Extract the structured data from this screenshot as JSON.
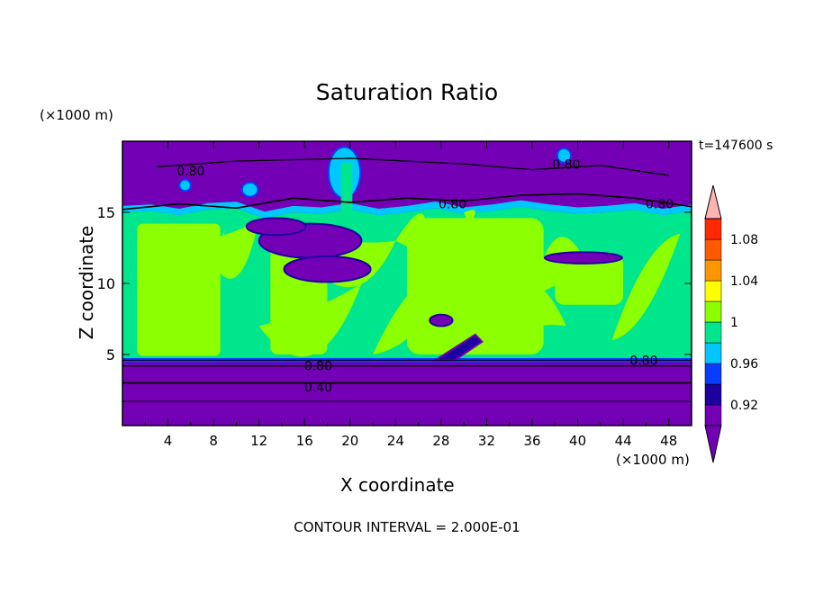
{
  "chart_data": {
    "type": "heatmap",
    "title": "Saturation Ratio",
    "xlabel": "X coordinate",
    "ylabel": "Z coordinate",
    "x_units": "(×1000 m)",
    "y_units": "(×1000 m)",
    "time_label": "t=147600 s",
    "footer": "CONTOUR INTERVAL = 2.000E-01",
    "xlim": [
      0,
      50
    ],
    "ylim": [
      0,
      20
    ],
    "x_ticks": [
      4,
      8,
      12,
      16,
      20,
      24,
      28,
      32,
      36,
      40,
      44,
      48
    ],
    "x_tick_labels": [
      "4",
      "8",
      "12",
      "16",
      "20",
      "24",
      "28",
      "32",
      "36",
      "40",
      "44",
      "48"
    ],
    "y_ticks": [
      5,
      10,
      15
    ],
    "y_tick_labels": [
      "5",
      "10",
      "15"
    ],
    "colorbar": {
      "levels": [
        0.9,
        0.92,
        0.94,
        0.96,
        0.98,
        1.0,
        1.02,
        1.04,
        1.06,
        1.08,
        1.1
      ],
      "labels": [
        "0.92",
        "0.96",
        "1",
        "1.04",
        "1.08"
      ],
      "label_values": [
        0.92,
        0.96,
        1.0,
        1.04,
        1.08
      ],
      "colors": [
        "#7300b4",
        "#1e00a0",
        "#0a3cff",
        "#00c8ff",
        "#00e68c",
        "#8cff00",
        "#ffff00",
        "#ff9600",
        "#ff5a00",
        "#ff2800",
        "#ffb4b4"
      ],
      "extend": "both"
    },
    "contour_labels": [
      {
        "text": "0.80",
        "x": 6.0,
        "z": 17.9
      },
      {
        "text": "0.80",
        "x": 29.0,
        "z": 15.6
      },
      {
        "text": "0.80",
        "x": 39.0,
        "z": 18.4
      },
      {
        "text": "0.80",
        "x": 47.2,
        "z": 15.6
      },
      {
        "text": "0.80",
        "x": 17.2,
        "z": 4.2
      },
      {
        "text": "0.40",
        "x": 17.2,
        "z": 2.7
      },
      {
        "text": "0.80",
        "x": 45.8,
        "z": 4.6
      }
    ],
    "regions": {
      "upper_dry_layer": {
        "z_range": [
          15,
          20
        ],
        "value": "<0.90"
      },
      "cloud_layer": {
        "z_range": [
          5,
          15
        ],
        "value": "0.98–1.02"
      },
      "lower_dry_layer": {
        "z_range": [
          0,
          4.5
        ],
        "value": "<0.90"
      }
    }
  }
}
